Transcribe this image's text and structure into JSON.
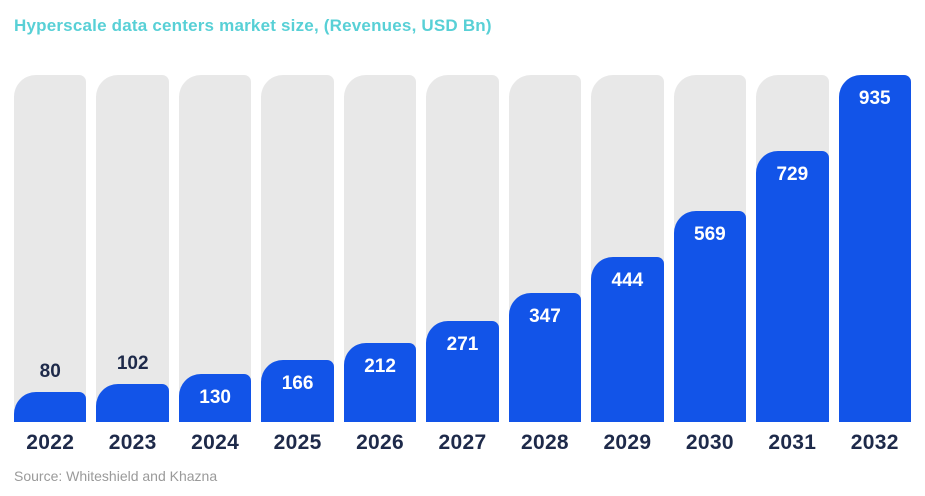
{
  "title": "Hyperscale data centers market size, (Revenues, USD Bn)",
  "source": "Source: Whiteshield and Khazna",
  "colors": {
    "bar_fill": "#1254e8",
    "bar_track": "#e8e8e8",
    "title": "#58d0d6",
    "axis_text": "#1e2a4a",
    "label_inside": "#ffffff",
    "label_above": "#1e2a4a",
    "source_text": "#9a9a9a"
  },
  "chart_data": {
    "type": "bar",
    "title": "Hyperscale data centers market size, (Revenues, USD Bn)",
    "categories": [
      "2022",
      "2023",
      "2024",
      "2025",
      "2026",
      "2027",
      "2028",
      "2029",
      "2030",
      "2031",
      "2032"
    ],
    "values": [
      80,
      102,
      130,
      166,
      212,
      271,
      347,
      444,
      569,
      729,
      935
    ],
    "xlabel": "",
    "ylabel": "Revenues, USD Bn",
    "ylim": [
      0,
      935
    ],
    "grid": false,
    "legend": "none",
    "value_label_inside_bar": [
      false,
      false,
      true,
      true,
      true,
      true,
      true,
      true,
      true,
      true,
      true
    ],
    "source": "Source: Whiteshield and Khazna"
  }
}
